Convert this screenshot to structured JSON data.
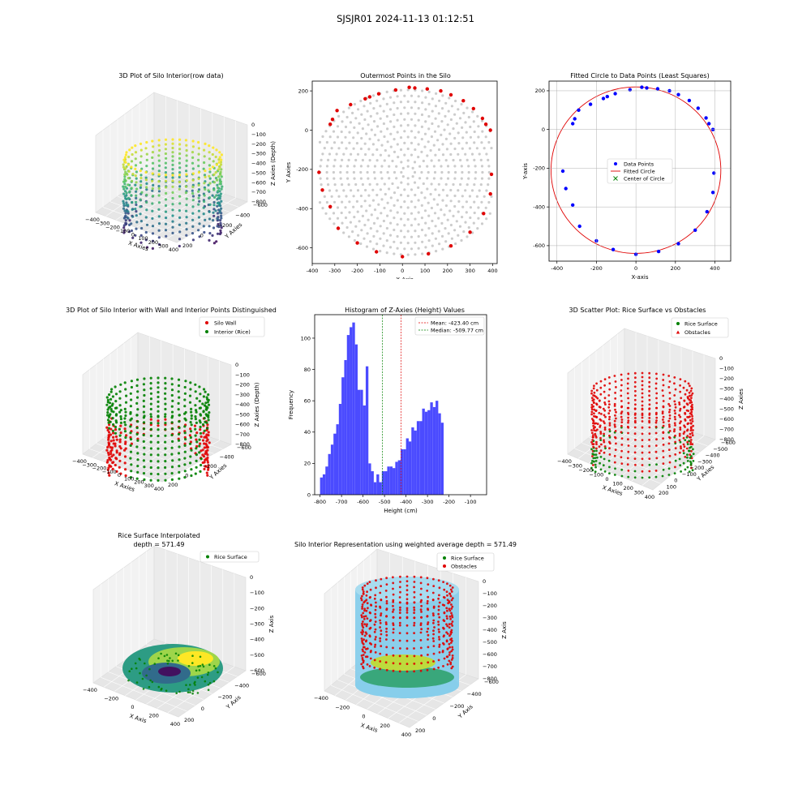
{
  "figure": {
    "title": "SJSJR01 2024-11-13 01:12:51"
  },
  "colors": {
    "red": "#e00000",
    "green": "#008000",
    "blue": "#0000ff",
    "gray": "#cccccc",
    "hist": "#4b4bff",
    "silo": "#87ceeb",
    "grid": "#b0b0b0"
  },
  "chart_data": [
    {
      "id": "p1",
      "type": "scatter3d",
      "title": "3D Plot of Silo Interior(row data)",
      "xlabel": "X Axies",
      "ylabel": "Y Axies",
      "zlabel": "Z Axies (Depth)",
      "xticks": [
        "−400",
        "−300",
        "−200",
        "−100",
        "0",
        "100",
        "200",
        "300",
        "400"
      ],
      "yticks": [
        "200",
        "0",
        "−200",
        "−400",
        "−600"
      ],
      "zticks": [
        "0",
        "−100",
        "−200",
        "−300",
        "−400",
        "−500",
        "−600",
        "−700",
        "−800"
      ],
      "colormap": "viridis"
    },
    {
      "id": "p2",
      "type": "scatter",
      "title": "Outermost Points in the Silo",
      "xlabel": "X Axis",
      "ylabel": "Y Axies",
      "xlim": [
        -400,
        420
      ],
      "ylim": [
        -680,
        250
      ],
      "xticks": [
        -400,
        -300,
        -200,
        -100,
        0,
        100,
        200,
        300,
        400
      ],
      "yticks": [
        -600,
        -400,
        -200,
        0,
        200
      ],
      "center": [
        25,
        -215
      ],
      "ring_radii": [
        30,
        60,
        90,
        120,
        150,
        180,
        210,
        240,
        270,
        300,
        330,
        360,
        390,
        420
      ],
      "outer_points": [
        [
          -370,
          -215
        ],
        [
          -355,
          -305
        ],
        [
          -320,
          -390
        ],
        [
          -285,
          -500
        ],
        [
          -200,
          -575
        ],
        [
          -115,
          -620
        ],
        [
          0,
          -645
        ],
        [
          115,
          -630
        ],
        [
          215,
          -590
        ],
        [
          300,
          -520
        ],
        [
          360,
          -425
        ],
        [
          390,
          -325
        ],
        [
          395,
          -225
        ],
        [
          390,
          0
        ],
        [
          370,
          30
        ],
        [
          355,
          60
        ],
        [
          315,
          110
        ],
        [
          270,
          150
        ],
        [
          215,
          180
        ],
        [
          170,
          200
        ],
        [
          110,
          210
        ],
        [
          55,
          215
        ],
        [
          30,
          218
        ],
        [
          -30,
          205
        ],
        [
          -105,
          185
        ],
        [
          -145,
          170
        ],
        [
          -165,
          160
        ],
        [
          -230,
          130
        ],
        [
          -290,
          100
        ],
        [
          -320,
          30
        ],
        [
          -310,
          55
        ]
      ]
    },
    {
      "id": "p3",
      "type": "scatter",
      "title": "Fitted Circle to Data Points (Least Squares)",
      "xlabel": "X-axis",
      "ylabel": "Y-axis",
      "xlim": [
        -440,
        480
      ],
      "ylim": [
        -680,
        250
      ],
      "xticks": [
        -400,
        -200,
        0,
        200,
        400
      ],
      "yticks": [
        -600,
        -400,
        -200,
        0,
        200
      ],
      "legend": [
        "Data Points",
        "Fitted Circle",
        "Center of Circle"
      ],
      "circle": {
        "cx": 0,
        "cy": -210,
        "r": 430
      },
      "data_points": [
        [
          -370,
          -215
        ],
        [
          -355,
          -305
        ],
        [
          -320,
          -390
        ],
        [
          -285,
          -500
        ],
        [
          -200,
          -575
        ],
        [
          -115,
          -620
        ],
        [
          0,
          -645
        ],
        [
          115,
          -630
        ],
        [
          215,
          -590
        ],
        [
          300,
          -520
        ],
        [
          360,
          -425
        ],
        [
          390,
          -325
        ],
        [
          395,
          -225
        ],
        [
          390,
          0
        ],
        [
          370,
          30
        ],
        [
          355,
          60
        ],
        [
          315,
          110
        ],
        [
          270,
          150
        ],
        [
          215,
          180
        ],
        [
          170,
          200
        ],
        [
          110,
          210
        ],
        [
          55,
          215
        ],
        [
          30,
          218
        ],
        [
          -30,
          205
        ],
        [
          -105,
          185
        ],
        [
          -145,
          170
        ],
        [
          -165,
          160
        ],
        [
          -230,
          130
        ],
        [
          -290,
          100
        ],
        [
          -320,
          30
        ],
        [
          -310,
          55
        ]
      ]
    },
    {
      "id": "p4",
      "type": "scatter3d",
      "title": "3D Plot of Silo Interior with Wall and Interior Points Distinguished",
      "xlabel": "X Axies",
      "ylabel": "Y Axies",
      "zlabel": "Z Axies (Depth)",
      "xticks": [
        "−400",
        "−300",
        "−200",
        "−100",
        "0",
        "100",
        "200",
        "300",
        "400"
      ],
      "yticks": [
        "200",
        "0",
        "−200",
        "−400",
        "−600"
      ],
      "zticks": [
        "0",
        "−100",
        "−200",
        "−300",
        "−400",
        "−500",
        "−600",
        "−700",
        "−800"
      ],
      "legend": [
        "Silo Wall",
        "Interior (Rice)"
      ]
    },
    {
      "id": "p5",
      "type": "bar",
      "title": "Histogram of Z-Axies (Height) Values",
      "xlabel": "Height (cm)",
      "ylabel": "Frequency",
      "xlim": [
        -825,
        -25
      ],
      "ylim": [
        0,
        115
      ],
      "xticks": [
        -800,
        -700,
        -600,
        -500,
        -400,
        -300,
        -200,
        -100
      ],
      "yticks": [
        0,
        20,
        40,
        60,
        80,
        100
      ],
      "bin_start": -800,
      "bin_width": 12.5,
      "values": [
        11,
        13,
        18,
        26,
        32,
        39,
        45,
        58,
        75,
        86,
        102,
        107,
        110,
        96,
        67,
        67,
        57,
        82,
        20,
        15,
        8,
        13,
        8,
        15,
        15,
        18,
        18,
        17,
        21,
        22,
        29,
        29,
        36,
        34,
        43,
        41,
        47,
        47,
        55,
        53,
        54,
        59,
        56,
        60,
        52,
        46
      ],
      "mean": -423.4,
      "median": -509.77,
      "legend": [
        "Mean: -423.40 cm",
        "Median: -509.77 cm"
      ]
    },
    {
      "id": "p6",
      "type": "scatter3d",
      "title": "3D Scatter Plot: Rice Surface vs Obstacles",
      "xlabel": "X Axies",
      "ylabel": "Y Axies",
      "zlabel": "Z Axies",
      "xticks": [
        "−400",
        "−300",
        "−200",
        "−100",
        "0",
        "100",
        "200",
        "300",
        "400"
      ],
      "yticks": [
        "200",
        "100",
        "0",
        "−100",
        "−200",
        "−300",
        "−400",
        "−500",
        "−600"
      ],
      "zticks": [
        "0",
        "−100",
        "−200",
        "−300",
        "−400",
        "−500",
        "−600",
        "−700",
        "−800"
      ],
      "legend": [
        "Rice Surface",
        "Obstacles"
      ]
    },
    {
      "id": "p7",
      "type": "surface3d",
      "title": "Rice Surface Interpolated",
      "subtitle": "depth = 571.49",
      "xlabel": "X Axis",
      "ylabel": "Y Axis",
      "zlabel": "Z Axis",
      "xticks": [
        "−400",
        "−200",
        "0",
        "200",
        "400"
      ],
      "yticks": [
        "200",
        "0",
        "−200",
        "−400",
        "−600"
      ],
      "zticks": [
        "0",
        "−100",
        "−200",
        "−300",
        "−400",
        "−500",
        "−600"
      ],
      "legend": [
        "Rice Surface"
      ]
    },
    {
      "id": "p8",
      "type": "scatter3d",
      "title": "Silo Interior Representation using weighted average depth = 571.49",
      "xlabel": "X Axis",
      "ylabel": "Y Axis",
      "zlabel": "Z Axis",
      "xticks": [
        "−400",
        "−200",
        "0",
        "200",
        "400"
      ],
      "yticks": [
        "200",
        "0",
        "−200",
        "−400",
        "−600"
      ],
      "zticks": [
        "0",
        "−100",
        "−200",
        "−300",
        "−400",
        "−500",
        "−600",
        "−700",
        "−800"
      ],
      "legend": [
        "Rice Surface",
        "Obstacles"
      ]
    }
  ]
}
